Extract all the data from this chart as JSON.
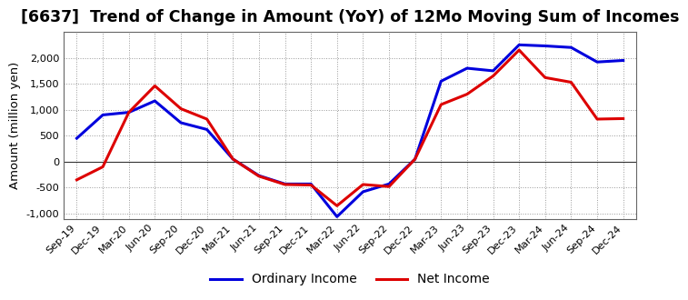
{
  "title": "[6637]  Trend of Change in Amount (YoY) of 12Mo Moving Sum of Incomes",
  "ylabel": "Amount (million yen)",
  "x_labels": [
    "Sep-19",
    "Dec-19",
    "Mar-20",
    "Jun-20",
    "Sep-20",
    "Dec-20",
    "Mar-21",
    "Jun-21",
    "Sep-21",
    "Dec-21",
    "Mar-22",
    "Jun-22",
    "Sep-22",
    "Dec-22",
    "Mar-23",
    "Jun-23",
    "Sep-23",
    "Dec-23",
    "Mar-24",
    "Jun-24",
    "Sep-24",
    "Dec-24"
  ],
  "ordinary_income": [
    450,
    900,
    950,
    1170,
    750,
    620,
    50,
    -270,
    -430,
    -430,
    -1060,
    -580,
    -430,
    50,
    1550,
    1800,
    1750,
    2250,
    2230,
    2200,
    1920,
    1950
  ],
  "net_income": [
    -350,
    -100,
    950,
    1460,
    1020,
    820,
    50,
    -280,
    -440,
    -450,
    -850,
    -440,
    -480,
    50,
    1100,
    1300,
    1650,
    2150,
    1620,
    1530,
    820,
    830
  ],
  "ordinary_color": "#0000dd",
  "net_color": "#dd0000",
  "ylim": [
    -1100,
    2500
  ],
  "yticks": [
    -1000,
    -500,
    0,
    500,
    1000,
    1500,
    2000
  ],
  "background_color": "#ffffff",
  "plot_bg_color": "#ffffff",
  "grid_color": "#999999",
  "legend_ordinary": "Ordinary Income",
  "legend_net": "Net Income",
  "title_fontsize": 12.5,
  "linewidth": 2.2
}
